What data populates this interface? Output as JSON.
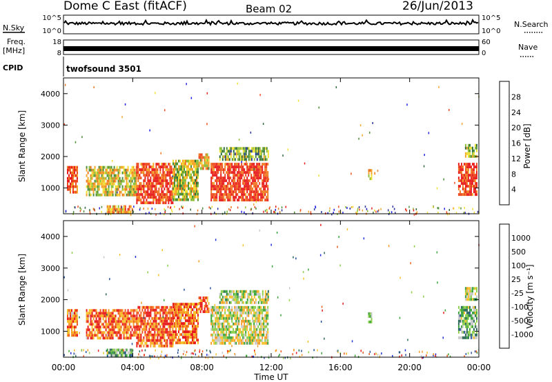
{
  "header": {
    "station": "Dome C East (fitACF)",
    "beam": "Beam 02",
    "date": "26/Jun/2013"
  },
  "top_panels": {
    "nsky_label": "N.Sky",
    "nsearch_label": "N.Search",
    "nsky_ticks": [
      "10^5",
      "10^0"
    ],
    "nsearch_ticks": [
      "10^5",
      "10^0"
    ],
    "freq_label_1": "Freq.",
    "freq_label_2": "[MHz]",
    "freq_ticks": [
      "18",
      "8"
    ],
    "nave_label": "Nave",
    "nave_ticks": [
      "60",
      "0"
    ],
    "cpid_label": "CPID",
    "cpid_value": "twofsound 3501"
  },
  "colors": {
    "power": [
      "#1f20e6",
      "#27319a",
      "#2e6b3b",
      "#4f8f3a",
      "#8dbf3a",
      "#f0e030",
      "#f5a72a",
      "#f07a22",
      "#ee4a1f",
      "#e81c1c"
    ],
    "velocity": [
      "#e81c1c",
      "#f05a1f",
      "#f79a24",
      "#f7c229",
      "#c8c8c8",
      "#8dcf4a",
      "#3aa33a",
      "#2c6b5a",
      "#28509a",
      "#2030d8"
    ],
    "ground_scatter": "#808080"
  },
  "chart_data": [
    {
      "type": "heatmap",
      "name": "power",
      "xlabel": "",
      "ylabel": "Slant Range [km]",
      "x_ticks": [
        "00:00",
        "04:00",
        "08:00",
        "12:00",
        "16:00",
        "20:00",
        "00:00"
      ],
      "xlim_hours": [
        0,
        24
      ],
      "ylim_km": [
        180,
        4500
      ],
      "y_ticks": [
        1000,
        2000,
        3000,
        4000
      ],
      "colorbar": {
        "label": "Power [dB]",
        "ticks": [
          "28",
          "24",
          "20",
          "16",
          "12",
          "8",
          "4"
        ],
        "range": [
          0,
          32
        ]
      },
      "regions": [
        {
          "t0": 0.2,
          "t1": 0.8,
          "r0": 900,
          "r1": 1700,
          "level": 0.85
        },
        {
          "t0": 1.3,
          "t1": 4.2,
          "r0": 750,
          "r1": 1700,
          "level": 0.55
        },
        {
          "t0": 4.2,
          "t1": 6.3,
          "r0": 500,
          "r1": 1800,
          "level": 0.88
        },
        {
          "t0": 6.3,
          "t1": 7.8,
          "r0": 600,
          "r1": 1900,
          "level": 0.5
        },
        {
          "t0": 7.8,
          "t1": 8.4,
          "r0": 1600,
          "r1": 2100,
          "level": 0.6
        },
        {
          "t0": 8.5,
          "t1": 11.8,
          "r0": 600,
          "r1": 1800,
          "level": 0.92
        },
        {
          "t0": 9.0,
          "t1": 11.8,
          "r0": 1900,
          "r1": 2300,
          "level": 0.4
        },
        {
          "t0": 2.5,
          "t1": 4.0,
          "r0": 250,
          "r1": 450,
          "level": 0.7
        },
        {
          "t0": 17.6,
          "t1": 17.8,
          "r0": 1300,
          "r1": 1600,
          "level": 0.6
        },
        {
          "t0": 22.8,
          "t1": 23.9,
          "r0": 800,
          "r1": 1800,
          "level": 0.9
        },
        {
          "t0": 23.2,
          "t1": 23.9,
          "r0": 2000,
          "r1": 2400,
          "level": 0.45
        }
      ]
    },
    {
      "type": "heatmap",
      "name": "velocity",
      "xlabel": "Time UT",
      "ylabel": "Slant Range [km]",
      "x_ticks": [
        "00:00",
        "04:00",
        "08:00",
        "12:00",
        "16:00",
        "20:00",
        "00:00"
      ],
      "xlim_hours": [
        0,
        24
      ],
      "ylim_km": [
        180,
        4500
      ],
      "y_ticks": [
        1000,
        2000,
        3000,
        4000
      ],
      "colorbar": {
        "label": "Velocity [m s⁻¹]",
        "ticks": [
          "1000",
          "500",
          "100",
          "25",
          "-25",
          "-100",
          "-500",
          "-1000"
        ],
        "range": [
          -1000,
          1000
        ]
      },
      "regions": [
        {
          "t0": 0.2,
          "t1": 0.8,
          "r0": 900,
          "r1": 1700,
          "level": 0.2
        },
        {
          "t0": 1.3,
          "t1": 4.2,
          "r0": 750,
          "r1": 1700,
          "level": 0.18
        },
        {
          "t0": 4.2,
          "t1": 6.3,
          "r0": 500,
          "r1": 1800,
          "level": 0.15
        },
        {
          "t0": 6.3,
          "t1": 7.8,
          "r0": 600,
          "r1": 1900,
          "level": 0.18
        },
        {
          "t0": 7.8,
          "t1": 8.4,
          "r0": 1600,
          "r1": 2100,
          "level": 0.12
        },
        {
          "t0": 8.5,
          "t1": 11.8,
          "r0": 600,
          "r1": 1800,
          "level": 0.45
        },
        {
          "t0": 9.0,
          "t1": 11.8,
          "r0": 1900,
          "r1": 2300,
          "level": 0.5
        },
        {
          "t0": 2.5,
          "t1": 4.0,
          "r0": 250,
          "r1": 450,
          "level": 0.6
        },
        {
          "t0": 17.6,
          "t1": 17.8,
          "r0": 1300,
          "r1": 1600,
          "level": 0.55
        },
        {
          "t0": 22.8,
          "t1": 23.9,
          "r0": 800,
          "r1": 1800,
          "level": 0.6
        },
        {
          "t0": 23.2,
          "t1": 23.9,
          "r0": 2000,
          "r1": 2400,
          "level": 0.5
        }
      ]
    }
  ]
}
